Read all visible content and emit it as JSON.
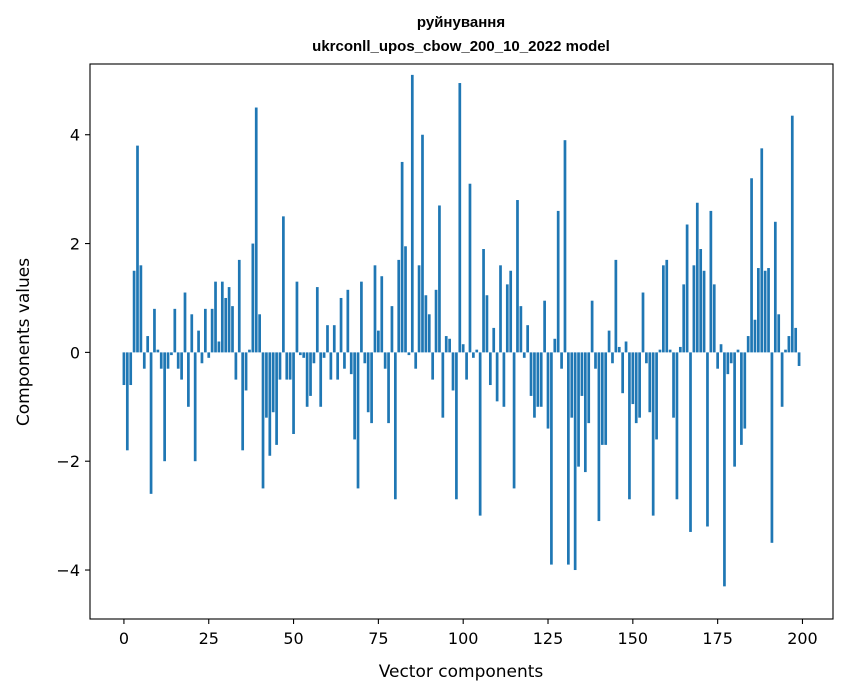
{
  "chart_data": {
    "type": "bar",
    "title": "руйнування",
    "subtitle": "ukrconll_upos_cbow_200_10_2022 model",
    "xlabel": "Vector components",
    "ylabel": "Components values",
    "xlim": [
      -10,
      209
    ],
    "ylim": [
      -4.9,
      5.3
    ],
    "xticks": [
      0,
      25,
      50,
      75,
      100,
      125,
      150,
      175,
      200
    ],
    "yticks": [
      -4,
      -2,
      0,
      2,
      4
    ],
    "xtick_labels": [
      "0",
      "25",
      "50",
      "75",
      "100",
      "125",
      "150",
      "175",
      "200"
    ],
    "ytick_labels": [
      "−4",
      "−2",
      "0",
      "2",
      "4"
    ],
    "bar_color": "#1f77b4",
    "grid": false,
    "values": [
      -0.6,
      -1.8,
      -0.6,
      1.5,
      3.8,
      1.6,
      -0.3,
      0.3,
      -2.6,
      0.8,
      0.05,
      -0.3,
      -2.0,
      -0.3,
      -0.05,
      0.8,
      -0.3,
      -0.5,
      1.1,
      -1.0,
      0.7,
      -2.0,
      0.4,
      -0.2,
      0.8,
      -0.1,
      0.8,
      1.3,
      0.2,
      1.3,
      1.0,
      1.2,
      0.85,
      -0.5,
      1.7,
      -1.8,
      -0.7,
      0.05,
      2.0,
      4.5,
      0.7,
      -2.5,
      -1.2,
      -1.9,
      -1.1,
      -1.7,
      -0.5,
      2.5,
      -0.5,
      -0.5,
      -1.5,
      1.3,
      -0.05,
      -0.1,
      -1.0,
      -0.8,
      -0.2,
      1.2,
      -1.0,
      -0.1,
      0.5,
      -0.5,
      0.5,
      -0.5,
      1.0,
      -0.3,
      1.15,
      -0.4,
      -1.6,
      -2.5,
      1.3,
      -0.2,
      -1.1,
      -1.3,
      1.6,
      0.4,
      1.4,
      -0.3,
      -1.3,
      0.85,
      -2.7,
      1.7,
      3.5,
      1.95,
      -0.05,
      5.1,
      -0.3,
      1.6,
      4.0,
      1.05,
      0.7,
      -0.5,
      1.15,
      2.7,
      -1.2,
      0.3,
      0.25,
      -0.7,
      -2.7,
      4.95,
      0.15,
      -0.5,
      3.1,
      -0.1,
      0.05,
      -3.0,
      1.9,
      1.05,
      -0.6,
      0.45,
      -0.9,
      1.6,
      -1.0,
      1.25,
      1.5,
      -2.5,
      2.8,
      0.85,
      -0.1,
      0.5,
      -0.8,
      -1.2,
      -1.0,
      -1.0,
      0.95,
      -1.4,
      -3.9,
      0.25,
      2.6,
      -0.3,
      3.9,
      -3.9,
      -1.2,
      -4.0,
      -2.1,
      -0.8,
      -2.2,
      -1.3,
      0.95,
      -0.3,
      -3.1,
      -1.7,
      -1.7,
      0.4,
      -0.2,
      1.7,
      0.1,
      -0.75,
      0.2,
      -2.7,
      -0.95,
      -1.3,
      -1.2,
      1.1,
      -0.2,
      -1.1,
      -3.0,
      -1.6,
      0.05,
      1.6,
      1.7,
      0.05,
      -1.2,
      -2.7,
      0.1,
      1.25,
      2.35,
      -3.3,
      1.6,
      2.75,
      1.9,
      1.5,
      -3.2,
      2.6,
      1.25,
      -0.3,
      0.15,
      -4.3,
      -0.4,
      -0.2,
      -2.1,
      0.05,
      -1.7,
      -1.4,
      0.3,
      3.2,
      0.6,
      1.55,
      3.75,
      1.5,
      1.55,
      -3.5,
      2.4,
      0.7,
      -1.0,
      0.05,
      0.3,
      4.35,
      0.45,
      -0.25
    ]
  }
}
